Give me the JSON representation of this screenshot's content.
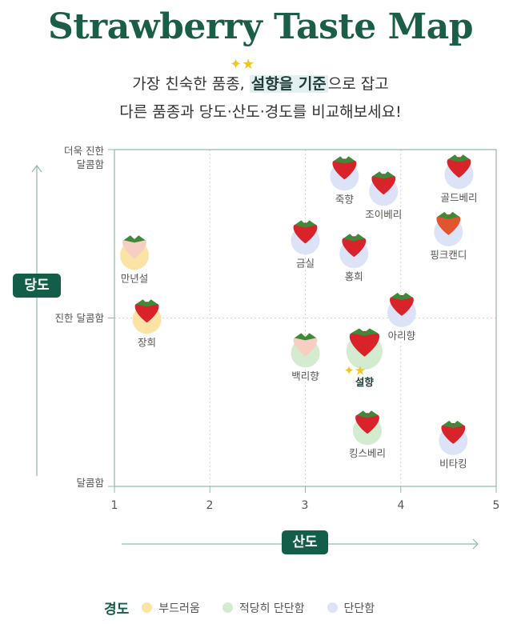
{
  "title": "Strawberry Taste Map",
  "subtitle": {
    "line1_pre": "가장 친숙한 품종, ",
    "line1_highlight": "설향을 기준",
    "line1_post": "으로 잡고",
    "line2": "다른 품종과 당도·산도·경도를 비교해보세요!"
  },
  "chart_data": {
    "type": "scatter",
    "title": "Strawberry Taste Map",
    "xlabel": "산도",
    "ylabel": "당도",
    "xlim": [
      1,
      5
    ],
    "ylim": [
      1,
      3
    ],
    "x_ticks": [
      "1",
      "2",
      "3",
      "4",
      "5"
    ],
    "y_ticks": [
      {
        "value": 1,
        "label": "달콤함"
      },
      {
        "value": 2,
        "label": "진한 달콤함"
      },
      {
        "value": 3,
        "label_line1": "더욱 진한",
        "label_line2": "달콤함"
      }
    ],
    "grid": true,
    "legend": {
      "title": "경도",
      "placement": "bottom",
      "items": [
        {
          "key": "soft",
          "label": "부드러움",
          "color": "#fbe3a6"
        },
        {
          "key": "medium",
          "label": "적당히 단단함",
          "color": "#d3ebcf"
        },
        {
          "key": "firm",
          "label": "단단함",
          "color": "#dde3f7"
        }
      ]
    },
    "points": [
      {
        "name": "만년설",
        "acidity": 1.21,
        "sweetness": 2.4,
        "hardness": "soft",
        "color": "white"
      },
      {
        "name": "장희",
        "acidity": 1.34,
        "sweetness": 2.02,
        "hardness": "soft",
        "color": "red"
      },
      {
        "name": "금실",
        "acidity": 3.0,
        "sweetness": 2.49,
        "hardness": "firm",
        "color": "red"
      },
      {
        "name": "죽향",
        "acidity": 3.41,
        "sweetness": 2.87,
        "hardness": "firm",
        "color": "red"
      },
      {
        "name": "조이베리",
        "acidity": 3.82,
        "sweetness": 2.78,
        "hardness": "firm",
        "color": "red"
      },
      {
        "name": "홍희",
        "acidity": 3.51,
        "sweetness": 2.41,
        "hardness": "firm",
        "color": "red"
      },
      {
        "name": "골드베리",
        "acidity": 4.61,
        "sweetness": 2.88,
        "hardness": "firm",
        "color": "red"
      },
      {
        "name": "핑크캔디",
        "acidity": 4.5,
        "sweetness": 2.54,
        "hardness": "firm",
        "color": "orange"
      },
      {
        "name": "아리향",
        "acidity": 4.01,
        "sweetness": 2.06,
        "hardness": "firm",
        "color": "red"
      },
      {
        "name": "백리향",
        "acidity": 3.0,
        "sweetness": 1.82,
        "hardness": "medium",
        "color": "white"
      },
      {
        "name": "설향",
        "acidity": 3.62,
        "sweetness": 1.83,
        "hardness": "medium",
        "color": "red",
        "highlight": true
      },
      {
        "name": "킹스베리",
        "acidity": 3.65,
        "sweetness": 1.36,
        "hardness": "medium",
        "color": "red"
      },
      {
        "name": "비타킹",
        "acidity": 4.55,
        "sweetness": 1.3,
        "hardness": "firm",
        "color": "red"
      }
    ]
  }
}
